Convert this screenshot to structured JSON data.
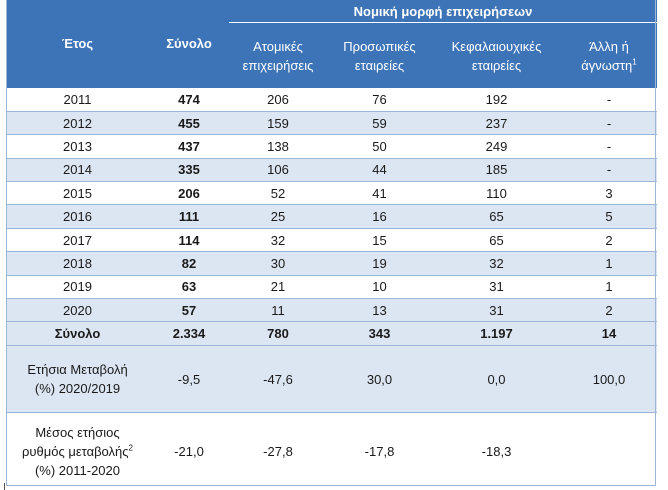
{
  "header": {
    "group_label": "Νομική μορφή επιχειρήσεων",
    "year_label": "Έτος",
    "total_label": "Σύνολο",
    "col_individual": "Ατομικές επιχειρήσεις",
    "col_partnerships": "Προσωπικές εταιρείες",
    "col_capital": "Κεφαλαιουχικές εταιρείες",
    "col_other": "Άλλη ή άγνωστη",
    "col_other_note": "1"
  },
  "rows": [
    {
      "year": "2011",
      "total": "474",
      "individual": "206",
      "partnerships": "76",
      "capital": "192",
      "other": "-"
    },
    {
      "year": "2012",
      "total": "455",
      "individual": "159",
      "partnerships": "59",
      "capital": "237",
      "other": "-"
    },
    {
      "year": "2013",
      "total": "437",
      "individual": "138",
      "partnerships": "50",
      "capital": "249",
      "other": "-"
    },
    {
      "year": "2014",
      "total": "335",
      "individual": "106",
      "partnerships": "44",
      "capital": "185",
      "other": "-"
    },
    {
      "year": "2015",
      "total": "206",
      "individual": "52",
      "partnerships": "41",
      "capital": "110",
      "other": "3"
    },
    {
      "year": "2016",
      "total": "111",
      "individual": "25",
      "partnerships": "16",
      "capital": "65",
      "other": "5"
    },
    {
      "year": "2017",
      "total": "114",
      "individual": "32",
      "partnerships": "15",
      "capital": "65",
      "other": "2"
    },
    {
      "year": "2018",
      "total": "82",
      "individual": "30",
      "partnerships": "19",
      "capital": "32",
      "other": "1"
    },
    {
      "year": "2019",
      "total": "63",
      "individual": "21",
      "partnerships": "10",
      "capital": "31",
      "other": "1"
    },
    {
      "year": "2020",
      "total": "57",
      "individual": "11",
      "partnerships": "13",
      "capital": "31",
      "other": "2"
    }
  ],
  "totals": {
    "label": "Σύνολο",
    "total": "2.334",
    "individual": "780",
    "partnerships": "343",
    "capital": "1.197",
    "other": "14"
  },
  "annual_change": {
    "label_line1": "Ετήσια Μεταβολή",
    "label_line2": "(%) 2020/2019",
    "total": "-9,5",
    "individual": "-47,6",
    "partnerships": "30,0",
    "capital": "0,0",
    "other": "100,0"
  },
  "avg_change": {
    "label_line1": "Μέσος ετήσιος",
    "label_line2": "ρυθμός μεταβολής",
    "label_note": "2",
    "label_line3": "(%) 2011-2020",
    "total": "-21,0",
    "individual": "-27,8",
    "partnerships": "-17,8",
    "capital": "-18,3",
    "other": ""
  },
  "colors": {
    "header_bg": "#3d74b8",
    "stripe_bg": "#dce6f2",
    "rule": "#9bb6d6"
  }
}
